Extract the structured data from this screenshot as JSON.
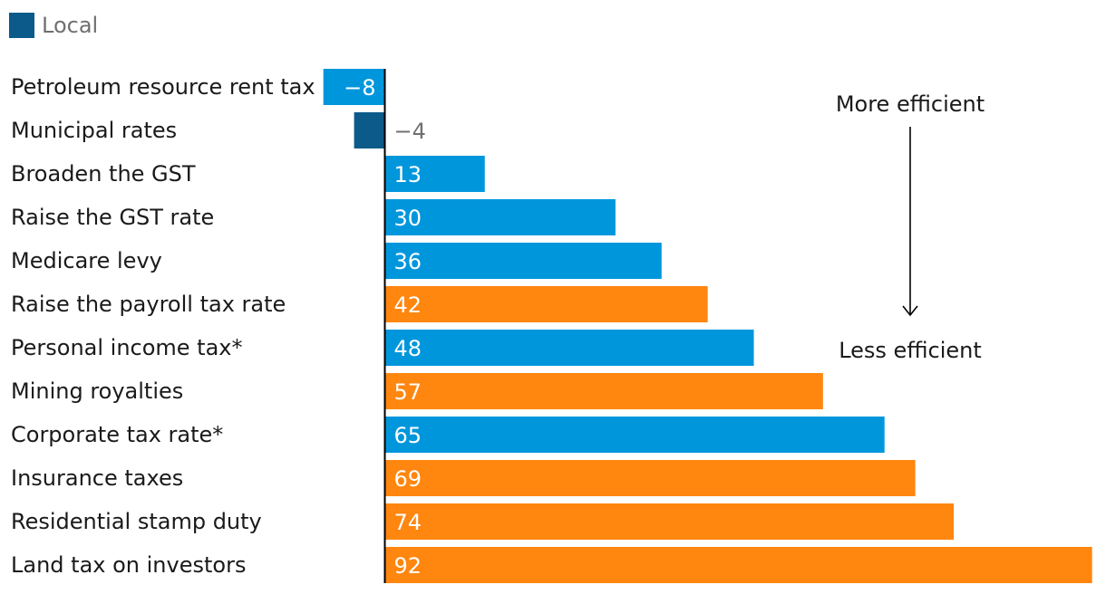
{
  "legend": [
    {
      "label": "Local",
      "color": "#0b5a8a"
    }
  ],
  "chart_data": {
    "type": "bar",
    "orientation": "horizontal",
    "categories": [
      "Petroleum resource rent tax",
      "Municipal rates",
      "Broaden the GST",
      "Raise the GST rate",
      "Medicare levy",
      "Raise the payroll tax rate",
      "Personal income tax*",
      "Mining royalties",
      "Corporate tax rate*",
      "Insurance taxes",
      "Residential stamp duty",
      "Land tax on investors"
    ],
    "values": [
      -8,
      -4,
      13,
      30,
      36,
      42,
      48,
      57,
      65,
      69,
      74,
      92
    ],
    "value_labels": [
      "−8",
      "−4",
      "13",
      "30",
      "36",
      "42",
      "48",
      "57",
      "65",
      "69",
      "74",
      "92"
    ],
    "level": [
      "federal",
      "local",
      "federal",
      "federal",
      "federal",
      "state",
      "federal",
      "state",
      "federal",
      "state",
      "state",
      "state"
    ],
    "colors": {
      "federal": "#0096dc",
      "local": "#0b5a8a",
      "state": "#ff860f"
    },
    "xlim": [
      -8,
      92
    ],
    "annotations": {
      "top": "More efficient",
      "bottom": "Less efficient"
    }
  }
}
